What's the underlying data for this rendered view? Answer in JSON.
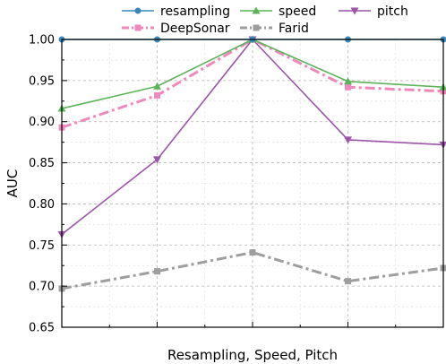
{
  "chart_data": {
    "type": "line",
    "xlabel": "Resampling, Speed, Pitch",
    "ylabel": "AUC",
    "x": [
      0,
      1,
      2,
      3,
      4
    ],
    "xlim": [
      0,
      4
    ],
    "ylim": [
      0.65,
      1.0
    ],
    "yticks": [
      "0.65",
      "0.70",
      "0.75",
      "0.80",
      "0.85",
      "0.90",
      "0.95",
      "1.00"
    ],
    "grid": true,
    "legend_position": "top",
    "series": [
      {
        "name": "resampling",
        "color": "#3a87b8",
        "marker": "circle",
        "linestyle": "solid",
        "values": [
          1.0,
          1.0,
          1.0,
          1.0,
          1.0
        ]
      },
      {
        "name": "speed",
        "color": "#5cb35c",
        "marker": "triangle-up",
        "linestyle": "solid",
        "values": [
          0.916,
          0.943,
          1.0,
          0.949,
          0.942
        ]
      },
      {
        "name": "pitch",
        "color": "#9b55a8",
        "marker": "triangle-down",
        "linestyle": "solid",
        "values": [
          0.763,
          0.854,
          1.0,
          0.878,
          0.872
        ]
      },
      {
        "name": "DeepSonar",
        "color": "#f088bb",
        "marker": "square",
        "linestyle": "dashdot",
        "values": [
          0.893,
          0.932,
          1.0,
          0.942,
          0.937
        ]
      },
      {
        "name": "Farid",
        "color": "#9e9e9e",
        "marker": "square",
        "linestyle": "dashdot",
        "values": [
          0.697,
          0.718,
          0.741,
          0.706,
          0.722
        ]
      }
    ]
  }
}
